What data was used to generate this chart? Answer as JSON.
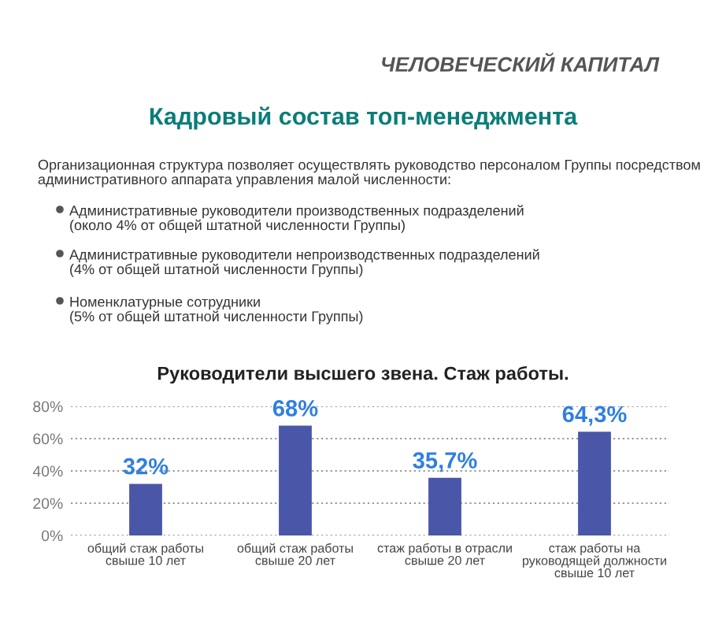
{
  "chart_data": {
    "type": "bar",
    "title": "Руководители высшего звена. Стаж работы.",
    "annotations": [
      "ЧЕЛОВЕЧЕСКИЙ КАПИТАЛ",
      "Кадровый состав топ-менеджмента",
      "Организационная структура позволяет осуществлять руководство персоналом Группы посредством\nадминистративного аппарата управления малой численности:",
      "Административные руководители производственных подразделений\n(около 4% от общей штатной численности Группы)",
      "Административные руководители непроизводственных подразделений\n(4% от общей штатной численности Группы)",
      "Номенклатурные сотрудники\n(5% от общей штатной численности Группы)"
    ],
    "categories": [
      "общий стаж работы\nсвыше 10 лет",
      "общий стаж работы\nсвыше 20 лет",
      "стаж работы в отрасли\nсвыше 20 лет",
      "стаж работы на\nруководящей должности\nсвыше 10 лет"
    ],
    "values": [
      32,
      68,
      35.7,
      64.3
    ],
    "value_labels": [
      "32%",
      "68%",
      "35,7%",
      "64,3%"
    ],
    "color": "#4a56a8",
    "ylim": [
      0,
      80
    ],
    "yticks": [
      {
        "value": 0,
        "label": "0%"
      },
      {
        "value": 20,
        "label": "20%"
      },
      {
        "value": 40,
        "label": "40%"
      },
      {
        "value": 60,
        "label": "60%"
      },
      {
        "value": 80,
        "label": "80%"
      }
    ],
    "grid": "y"
  }
}
